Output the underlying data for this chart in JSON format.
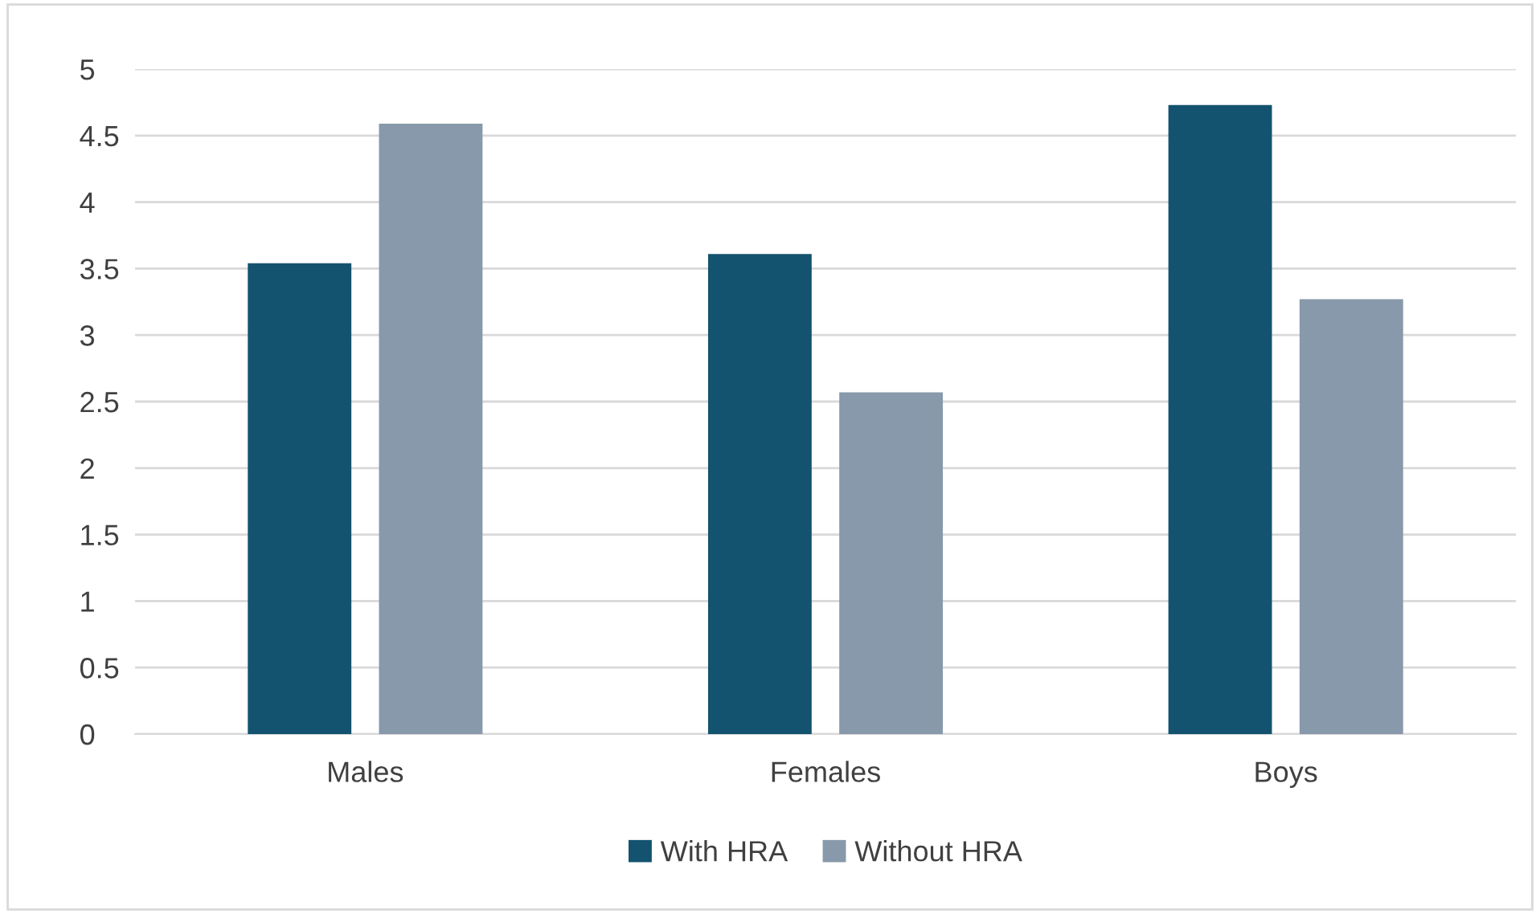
{
  "chart_data": {
    "type": "bar",
    "categories": [
      "Males",
      "Females",
      "Boys"
    ],
    "series": [
      {
        "name": "With HRA",
        "color": "#14536f",
        "values": [
          3.54,
          3.61,
          4.73
        ]
      },
      {
        "name": "Without HRA",
        "color": "#8799aa",
        "values": [
          4.59,
          2.57,
          3.27
        ]
      }
    ],
    "ylim": [
      0,
      5
    ],
    "yticks": [
      0,
      0.5,
      1,
      1.5,
      2,
      2.5,
      3,
      3.5,
      4,
      4.5,
      5
    ],
    "grid": "y",
    "legend": "bottom"
  }
}
